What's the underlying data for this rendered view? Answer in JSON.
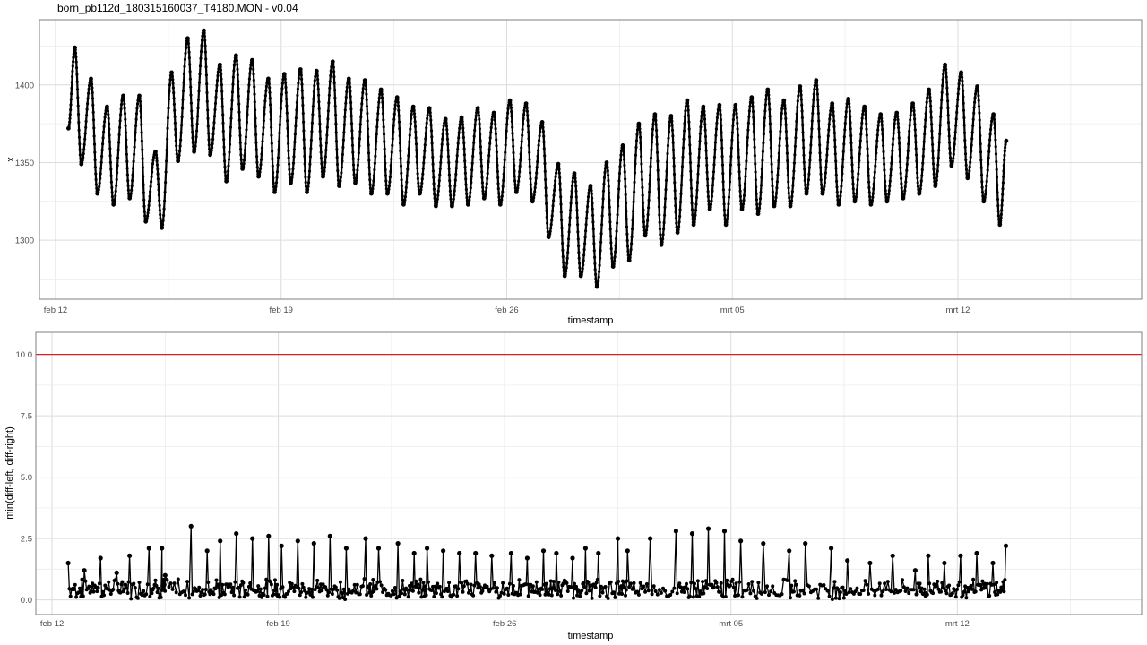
{
  "title": "born_pb112d_180315160037_T4180.MON - v0.04",
  "chart_data": [
    {
      "type": "scatter",
      "title": "",
      "xlabel": "timestamp",
      "ylabel": "x",
      "x_ticks": [
        "feb 12",
        "feb 19",
        "feb 26",
        "mrt 05",
        "mrt 12"
      ],
      "y_ticks": [
        "1300",
        "1350",
        "1400"
      ],
      "xlim_days": [
        -0.5,
        33.7
      ],
      "ylim": [
        1262,
        1442
      ],
      "grid": true,
      "series": [
        {
          "color": "#000000",
          "oscillation": "twice daily",
          "points": [
            [
              0.4,
              1372
            ],
            [
              0.6,
              1424
            ],
            [
              0.8,
              1349
            ],
            [
              1.1,
              1404
            ],
            [
              1.3,
              1330
            ],
            [
              1.6,
              1386
            ],
            [
              1.8,
              1323
            ],
            [
              2.1,
              1393
            ],
            [
              2.3,
              1327
            ],
            [
              2.6,
              1393
            ],
            [
              2.8,
              1312
            ],
            [
              3.1,
              1357
            ],
            [
              3.3,
              1308
            ],
            [
              3.6,
              1408
            ],
            [
              3.8,
              1351
            ],
            [
              4.1,
              1430
            ],
            [
              4.3,
              1357
            ],
            [
              4.6,
              1435
            ],
            [
              4.8,
              1355
            ],
            [
              5.1,
              1413
            ],
            [
              5.3,
              1338
            ],
            [
              5.6,
              1419
            ],
            [
              5.8,
              1346
            ],
            [
              6.1,
              1416
            ],
            [
              6.3,
              1341
            ],
            [
              6.6,
              1404
            ],
            [
              6.8,
              1331
            ],
            [
              7.1,
              1407
            ],
            [
              7.3,
              1337
            ],
            [
              7.6,
              1410
            ],
            [
              7.8,
              1331
            ],
            [
              8.1,
              1409
            ],
            [
              8.3,
              1341
            ],
            [
              8.6,
              1415
            ],
            [
              8.8,
              1335
            ],
            [
              9.1,
              1404
            ],
            [
              9.3,
              1337
            ],
            [
              9.6,
              1403
            ],
            [
              9.8,
              1330
            ],
            [
              10.1,
              1397
            ],
            [
              10.3,
              1330
            ],
            [
              10.6,
              1392
            ],
            [
              10.8,
              1323
            ],
            [
              11.1,
              1386
            ],
            [
              11.3,
              1330
            ],
            [
              11.6,
              1385
            ],
            [
              11.8,
              1322
            ],
            [
              12.1,
              1378
            ],
            [
              12.3,
              1322
            ],
            [
              12.6,
              1379
            ],
            [
              12.8,
              1323
            ],
            [
              13.1,
              1385
            ],
            [
              13.3,
              1327
            ],
            [
              13.6,
              1382
            ],
            [
              13.8,
              1323
            ],
            [
              14.1,
              1390
            ],
            [
              14.3,
              1331
            ],
            [
              14.6,
              1388
            ],
            [
              14.8,
              1325
            ],
            [
              15.1,
              1376
            ],
            [
              15.3,
              1302
            ],
            [
              15.6,
              1349
            ],
            [
              15.8,
              1277
            ],
            [
              16.1,
              1343
            ],
            [
              16.3,
              1277
            ],
            [
              16.6,
              1335
            ],
            [
              16.8,
              1270
            ],
            [
              17.1,
              1350
            ],
            [
              17.3,
              1283
            ],
            [
              17.6,
              1361
            ],
            [
              17.8,
              1287
            ],
            [
              18.1,
              1375
            ],
            [
              18.3,
              1303
            ],
            [
              18.6,
              1381
            ],
            [
              18.8,
              1297
            ],
            [
              19.1,
              1380
            ],
            [
              19.3,
              1305
            ],
            [
              19.6,
              1390
            ],
            [
              19.8,
              1310
            ],
            [
              20.1,
              1386
            ],
            [
              20.3,
              1320
            ],
            [
              20.6,
              1387
            ],
            [
              20.8,
              1310
            ],
            [
              21.1,
              1387
            ],
            [
              21.3,
              1320
            ],
            [
              21.6,
              1392
            ],
            [
              21.8,
              1317
            ],
            [
              22.1,
              1397
            ],
            [
              22.3,
              1322
            ],
            [
              22.6,
              1390
            ],
            [
              22.8,
              1322
            ],
            [
              23.1,
              1399
            ],
            [
              23.3,
              1330
            ],
            [
              23.6,
              1403
            ],
            [
              23.8,
              1330
            ],
            [
              24.1,
              1388
            ],
            [
              24.3,
              1323
            ],
            [
              24.6,
              1391
            ],
            [
              24.8,
              1325
            ],
            [
              25.1,
              1386
            ],
            [
              25.3,
              1323
            ],
            [
              25.6,
              1381
            ],
            [
              25.8,
              1325
            ],
            [
              26.1,
              1382
            ],
            [
              26.3,
              1327
            ],
            [
              26.6,
              1388
            ],
            [
              26.8,
              1330
            ],
            [
              27.1,
              1397
            ],
            [
              27.3,
              1335
            ],
            [
              27.6,
              1413
            ],
            [
              27.8,
              1348
            ],
            [
              28.1,
              1408
            ],
            [
              28.3,
              1340
            ],
            [
              28.6,
              1399
            ],
            [
              28.8,
              1325
            ],
            [
              29.1,
              1381
            ],
            [
              29.3,
              1310
            ],
            [
              29.5,
              1364
            ]
          ]
        }
      ]
    },
    {
      "type": "scatter",
      "title": "",
      "xlabel": "timestamp",
      "ylabel": "min(diff-left, diff-right)",
      "x_ticks": [
        "feb 12",
        "feb 19",
        "feb 26",
        "mrt 05",
        "mrt 12"
      ],
      "y_ticks": [
        "0.0",
        "2.5",
        "5.0",
        "7.5",
        "10.0"
      ],
      "xlim_days": [
        -0.5,
        33.7
      ],
      "ylim": [
        -0.6,
        10.9
      ],
      "grid": true,
      "reference_line": {
        "y": 10.0,
        "color": "#e41a1c"
      },
      "series": [
        {
          "color": "#000000",
          "peaks": [
            [
              0.5,
              1.5
            ],
            [
              1.0,
              1.2
            ],
            [
              1.5,
              1.7
            ],
            [
              2.0,
              1.1
            ],
            [
              2.4,
              1.8
            ],
            [
              3.0,
              2.1
            ],
            [
              3.4,
              2.1
            ],
            [
              3.5,
              1.0
            ],
            [
              4.3,
              3.0
            ],
            [
              4.8,
              2.0
            ],
            [
              5.2,
              2.4
            ],
            [
              5.7,
              2.7
            ],
            [
              6.2,
              2.5
            ],
            [
              6.7,
              2.6
            ],
            [
              7.1,
              2.2
            ],
            [
              7.6,
              2.4
            ],
            [
              8.1,
              2.3
            ],
            [
              8.6,
              2.6
            ],
            [
              9.1,
              2.1
            ],
            [
              9.7,
              2.5
            ],
            [
              10.1,
              2.1
            ],
            [
              10.7,
              2.3
            ],
            [
              11.2,
              1.9
            ],
            [
              11.6,
              2.1
            ],
            [
              12.1,
              2.0
            ],
            [
              12.6,
              1.9
            ],
            [
              13.1,
              1.9
            ],
            [
              13.6,
              1.8
            ],
            [
              14.2,
              1.9
            ],
            [
              14.7,
              1.7
            ],
            [
              15.2,
              2.0
            ],
            [
              15.6,
              1.9
            ],
            [
              16.1,
              1.7
            ],
            [
              16.5,
              2.1
            ],
            [
              16.9,
              1.9
            ],
            [
              17.5,
              2.5
            ],
            [
              17.8,
              2.0
            ],
            [
              18.5,
              2.5
            ],
            [
              19.3,
              2.8
            ],
            [
              19.8,
              2.7
            ],
            [
              20.3,
              2.9
            ],
            [
              20.8,
              2.8
            ],
            [
              21.3,
              2.4
            ],
            [
              22.0,
              2.3
            ],
            [
              22.8,
              2.0
            ],
            [
              23.3,
              2.3
            ],
            [
              24.1,
              2.1
            ],
            [
              24.6,
              1.6
            ],
            [
              25.3,
              1.5
            ],
            [
              26.0,
              1.8
            ],
            [
              26.7,
              1.2
            ],
            [
              27.1,
              1.8
            ],
            [
              27.6,
              1.5
            ],
            [
              28.1,
              1.8
            ],
            [
              28.6,
              1.9
            ],
            [
              29.1,
              1.5
            ],
            [
              29.5,
              2.2
            ]
          ]
        }
      ]
    }
  ]
}
